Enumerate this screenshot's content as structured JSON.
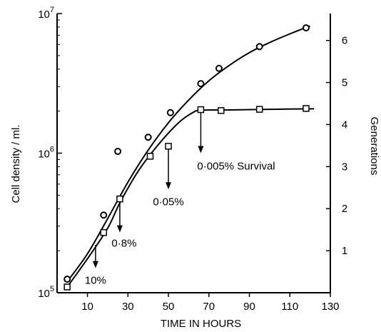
{
  "chart_data": {
    "type": "line",
    "title": "",
    "xlabel": "TIME IN HOURS",
    "ylabel": "Cell density / ml.",
    "y2label": "Generations",
    "xlim": [
      -5,
      130
    ],
    "ylim": [
      100000,
      10000000
    ],
    "yscale": "log",
    "y2lim": [
      0,
      6.64
    ],
    "x_ticks": [
      10,
      30,
      50,
      70,
      90,
      110,
      130
    ],
    "y_ticks": [
      {
        "value": 100000,
        "base": "10",
        "exp": "5"
      },
      {
        "value": 1000000,
        "base": "10",
        "exp": "6"
      },
      {
        "value": 10000000,
        "base": "10",
        "exp": "7"
      }
    ],
    "y2_ticks": [
      "1",
      "2",
      "3",
      "4",
      "5",
      "6"
    ],
    "grid": false,
    "series": [
      {
        "marker": "circle",
        "points": [
          {
            "x": 0,
            "y": 125000
          },
          {
            "x": 18,
            "y": 360000
          },
          {
            "x": 25,
            "y": 1030000
          },
          {
            "x": 40,
            "y": 1300000
          },
          {
            "x": 51,
            "y": 1950000
          },
          {
            "x": 66,
            "y": 3150000
          },
          {
            "x": 75,
            "y": 4050000
          },
          {
            "x": 95,
            "y": 5800000
          },
          {
            "x": 118,
            "y": 7900000
          }
        ],
        "curve": [
          {
            "x": 0,
            "y": 120000
          },
          {
            "x": 10,
            "y": 190000
          },
          {
            "x": 20,
            "y": 340000
          },
          {
            "x": 30,
            "y": 620000
          },
          {
            "x": 40,
            "y": 1050000
          },
          {
            "x": 50,
            "y": 1650000
          },
          {
            "x": 60,
            "y": 2400000
          },
          {
            "x": 70,
            "y": 3300000
          },
          {
            "x": 80,
            "y": 4250000
          },
          {
            "x": 90,
            "y": 5250000
          },
          {
            "x": 100,
            "y": 6200000
          },
          {
            "x": 110,
            "y": 7150000
          },
          {
            "x": 120,
            "y": 8150000
          }
        ]
      },
      {
        "marker": "square",
        "points": [
          {
            "x": 0,
            "y": 110000
          },
          {
            "x": 18,
            "y": 270000
          },
          {
            "x": 26,
            "y": 470000
          },
          {
            "x": 41,
            "y": 950000
          },
          {
            "x": 50,
            "y": 1120000
          },
          {
            "x": 66,
            "y": 2050000
          },
          {
            "x": 76,
            "y": 2020000
          },
          {
            "x": 95,
            "y": 2060000
          },
          {
            "x": 118,
            "y": 2090000
          }
        ],
        "curve": [
          {
            "x": 0,
            "y": 110000
          },
          {
            "x": 10,
            "y": 175000
          },
          {
            "x": 20,
            "y": 290000
          },
          {
            "x": 26,
            "y": 440000
          },
          {
            "x": 35,
            "y": 740000
          },
          {
            "x": 45,
            "y": 1150000
          },
          {
            "x": 55,
            "y": 1650000
          },
          {
            "x": 62,
            "y": 1950000
          },
          {
            "x": 66,
            "y": 2030000
          },
          {
            "x": 80,
            "y": 2040000
          },
          {
            "x": 100,
            "y": 2060000
          },
          {
            "x": 122,
            "y": 2080000
          }
        ]
      }
    ],
    "annotations": [
      {
        "text": "10%",
        "x": 14,
        "y_from": 220000,
        "y_to": 150000
      },
      {
        "text": "0·8%",
        "x": 26,
        "y_from": 470000,
        "y_to": 270000
      },
      {
        "text": "0·05%",
        "x": 50,
        "y_from": 1070000,
        "y_to": 550000
      },
      {
        "text": "0·005% Survival",
        "x": 66,
        "y_from": 1950000,
        "y_to": 1000000
      }
    ]
  }
}
